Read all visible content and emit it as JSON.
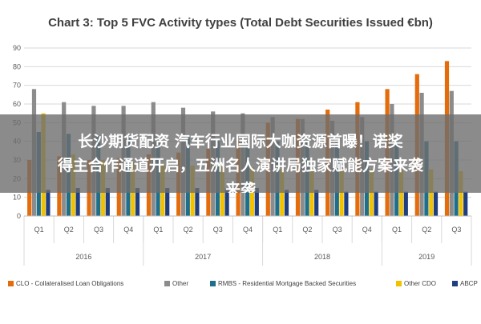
{
  "chart_data": {
    "type": "bar",
    "title": "Chart 3: Top 5 FVC Activity types (Total Debt Securities Issued €bn)",
    "xlabel": "",
    "ylabel": "",
    "ylim": [
      0,
      90
    ],
    "yticks": [
      0,
      10,
      20,
      30,
      40,
      50,
      60,
      70,
      80,
      90
    ],
    "grid": true,
    "legend_position": "bottom",
    "categories": [
      "Q1",
      "Q2",
      "Q3",
      "Q4",
      "Q1",
      "Q2",
      "Q3",
      "Q4",
      "Q1",
      "Q2",
      "Q3",
      "Q4",
      "Q1",
      "Q2",
      "Q3"
    ],
    "year_groups": [
      {
        "label": "2016",
        "count": 4
      },
      {
        "label": "2017",
        "count": 4
      },
      {
        "label": "2018",
        "count": 4
      },
      {
        "label": "2019",
        "count": 3
      }
    ],
    "series": [
      {
        "name": "CLO - Collateralised Loan Obligations",
        "color": "#e46c0a",
        "values": [
          30,
          32,
          30,
          31,
          33,
          34,
          36,
          40,
          50,
          52,
          57,
          61,
          68,
          76,
          83
        ]
      },
      {
        "name": "Other",
        "color": "#8c8c8c",
        "values": [
          68,
          61,
          59,
          59,
          61,
          58,
          56,
          55,
          53,
          52,
          51,
          53,
          60,
          66,
          67
        ]
      },
      {
        "name": "RMBS - Residential Mortgage Backed Securities",
        "color": "#1f6f8b",
        "values": [
          45,
          44,
          43,
          42,
          40,
          42,
          41,
          40,
          40,
          40,
          40,
          40,
          40,
          40,
          40
        ]
      },
      {
        "name": "Other CDO",
        "color": "#f2c200",
        "values": [
          55,
          33,
          30,
          29,
          28,
          27,
          27,
          26,
          25,
          25,
          25,
          25,
          25,
          25,
          24
        ]
      },
      {
        "name": "ABCP",
        "color": "#1f3f7f",
        "values": [
          14,
          15,
          15,
          15,
          15,
          15,
          15,
          15,
          14,
          14,
          13,
          13,
          13,
          13,
          13
        ]
      }
    ]
  },
  "overlay": {
    "line1": "长沙期货配资 汽车行业国际大咖资源首曝！诺奖",
    "line2": "得主合作通道开启，五洲名人演讲局独家赋能方案来袭",
    "line3": "来袭"
  }
}
